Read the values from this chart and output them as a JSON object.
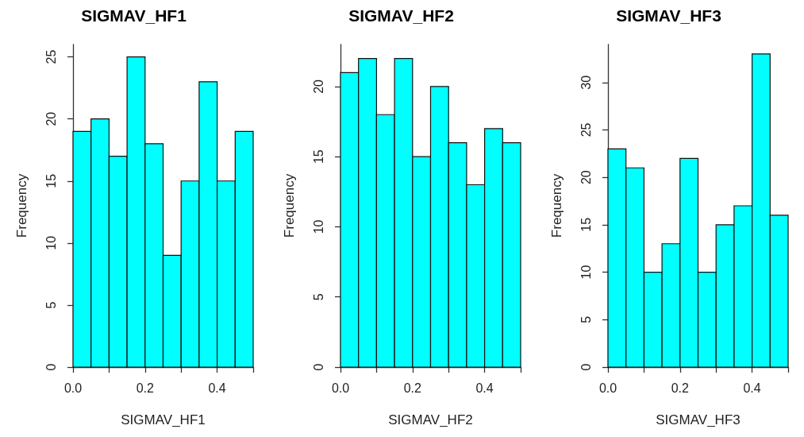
{
  "chart_data": [
    {
      "type": "histogram",
      "title": "SIGMAV_HF1",
      "xlabel": "SIGMAV_HF1",
      "ylabel": "Frequency",
      "color": "#00ffff",
      "bins": [
        0,
        0.05,
        0.1,
        0.15,
        0.2,
        0.25,
        0.3,
        0.35,
        0.4,
        0.45,
        0.5
      ],
      "values": [
        19,
        20,
        17,
        25,
        18,
        9,
        15,
        23,
        15,
        19
      ],
      "xlim": [
        0,
        0.5
      ],
      "xticks": [
        {
          "value": 0,
          "label": "0.0"
        },
        {
          "value": 0.1,
          "label": null
        },
        {
          "value": 0.2,
          "label": "0.2"
        },
        {
          "value": 0.3,
          "label": null
        },
        {
          "value": 0.4,
          "label": "0.4"
        },
        {
          "value": 0.5,
          "label": null
        }
      ],
      "ylim": [
        0,
        26
      ],
      "yticks": [
        0,
        5,
        10,
        15,
        20,
        25
      ]
    },
    {
      "type": "histogram",
      "title": "SIGMAV_HF2",
      "xlabel": "SIGMAV_HF2",
      "ylabel": "Frequency",
      "color": "#00ffff",
      "bins": [
        0,
        0.05,
        0.1,
        0.15,
        0.2,
        0.25,
        0.3,
        0.35,
        0.4,
        0.45,
        0.5
      ],
      "values": [
        21,
        22,
        18,
        22,
        15,
        20,
        16,
        13,
        17,
        16
      ],
      "xlim": [
        0,
        0.5
      ],
      "xticks": [
        {
          "value": 0,
          "label": "0.0"
        },
        {
          "value": 0.1,
          "label": null
        },
        {
          "value": 0.2,
          "label": "0.2"
        },
        {
          "value": 0.3,
          "label": null
        },
        {
          "value": 0.4,
          "label": "0.4"
        },
        {
          "value": 0.5,
          "label": null
        }
      ],
      "ylim": [
        0,
        23
      ],
      "yticks": [
        0,
        5,
        10,
        15,
        20
      ]
    },
    {
      "type": "histogram",
      "title": "SIGMAV_HF3",
      "xlabel": "SIGMAV_HF3",
      "ylabel": "Frequency",
      "color": "#00ffff",
      "bins": [
        0,
        0.05,
        0.1,
        0.15,
        0.2,
        0.25,
        0.3,
        0.35,
        0.4,
        0.45,
        0.5
      ],
      "values": [
        23,
        21,
        10,
        13,
        22,
        10,
        15,
        17,
        33,
        16
      ],
      "xlim": [
        0,
        0.5
      ],
      "xticks": [
        {
          "value": 0,
          "label": "0.0"
        },
        {
          "value": 0.1,
          "label": null
        },
        {
          "value": 0.2,
          "label": "0.2"
        },
        {
          "value": 0.3,
          "label": null
        },
        {
          "value": 0.4,
          "label": "0.4"
        },
        {
          "value": 0.5,
          "label": null
        }
      ],
      "ylim": [
        0,
        34
      ],
      "yticks": [
        0,
        5,
        10,
        15,
        20,
        25,
        30
      ]
    }
  ]
}
